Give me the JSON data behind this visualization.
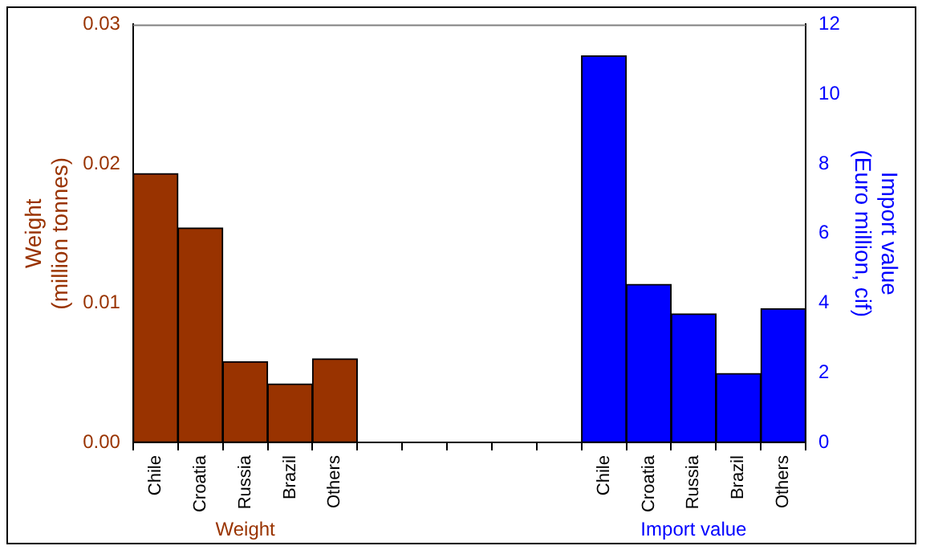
{
  "chart_data": {
    "type": "bar",
    "ylabel": "Weight\n(million tonnes)",
    "y2label": "Import value\n(Euro million, cif)",
    "categories": [
      "Chile",
      "Croatia",
      "Russia",
      "Brazil",
      "Others",
      null,
      null,
      null,
      null,
      null,
      "Chile",
      "Croatia",
      "Russia",
      "Brazil",
      "Others"
    ],
    "series": [
      {
        "name": "Weight",
        "color": "#993300",
        "values": [
          0.0193,
          0.0154,
          0.0058,
          0.0042,
          0.006,
          null,
          null,
          null,
          null,
          null,
          null,
          null,
          null,
          null,
          null
        ]
      },
      {
        "name": "Import value",
        "color": "#0000ff",
        "axis": "y2",
        "values": [
          null,
          null,
          null,
          null,
          null,
          null,
          null,
          null,
          null,
          null,
          11.1,
          4.54,
          3.69,
          1.98,
          3.84
        ]
      }
    ],
    "ylim": [
      0,
      0.03
    ],
    "yticks": [
      {
        "value": 0,
        "label": "0.00"
      },
      {
        "value": 0.01,
        "label": "0.01"
      },
      {
        "value": 0.02,
        "label": "0.02"
      },
      {
        "value": 0.03,
        "label": "0.03"
      }
    ],
    "y2lim": [
      0,
      12
    ],
    "y2ticks": [
      0,
      2,
      4,
      6,
      8,
      10,
      12
    ],
    "grid": false,
    "legend": false
  }
}
